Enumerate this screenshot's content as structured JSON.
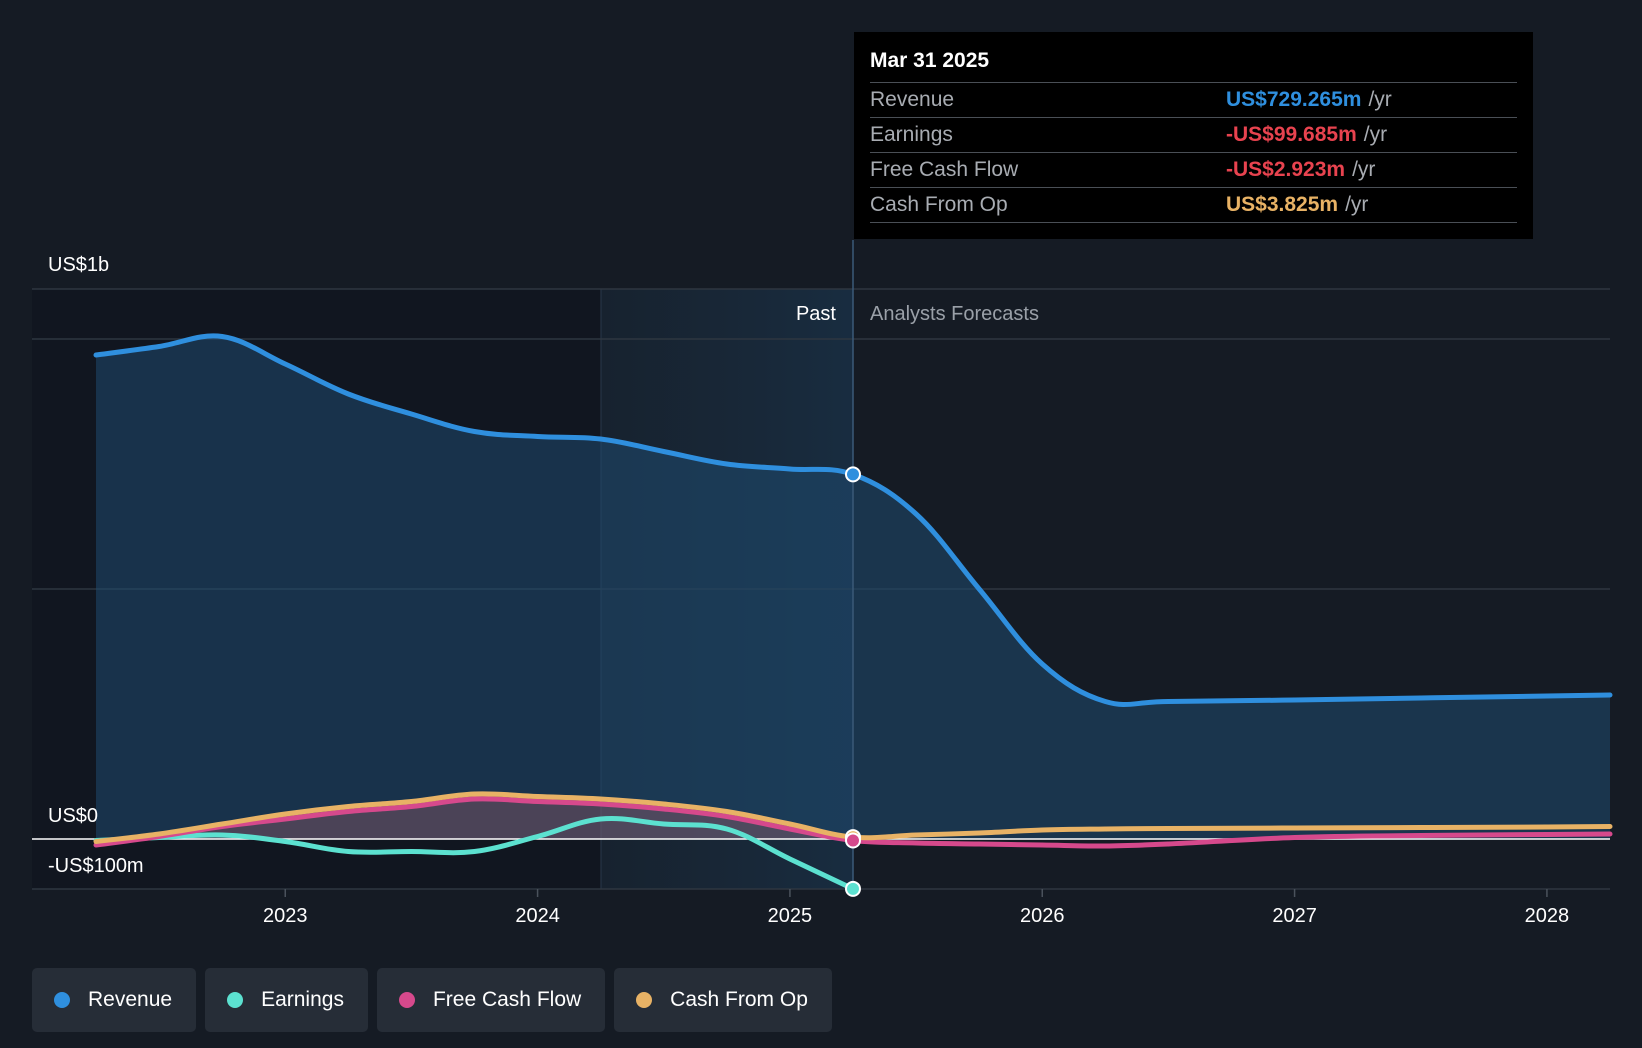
{
  "chart_data": {
    "type": "area",
    "y_axis": {
      "top_label": "US$1b",
      "zero_label": "US$0",
      "bottom_label": "-US$100m",
      "ylim": [
        -100,
        1100
      ]
    },
    "x_axis": {
      "ticks": [
        "2023",
        "2024",
        "2025",
        "2026",
        "2027",
        "2028"
      ],
      "xlim": [
        2022.25,
        2028.25
      ]
    },
    "past_label": "Past",
    "forecast_label": "Analysts Forecasts",
    "divider_x": 2025.25,
    "series": [
      {
        "name": "Revenue",
        "color": "#2f8fde",
        "points": [
          [
            2022.25,
            968
          ],
          [
            2022.5,
            985
          ],
          [
            2022.75,
            1005
          ],
          [
            2023.0,
            950
          ],
          [
            2023.25,
            890
          ],
          [
            2023.5,
            850
          ],
          [
            2023.75,
            815
          ],
          [
            2024.0,
            805
          ],
          [
            2024.25,
            800
          ],
          [
            2024.5,
            775
          ],
          [
            2024.75,
            750
          ],
          [
            2025.0,
            740
          ],
          [
            2025.25,
            729.265
          ],
          [
            2025.5,
            650
          ],
          [
            2025.75,
            500
          ],
          [
            2026.0,
            350
          ],
          [
            2026.25,
            275
          ],
          [
            2026.5,
            275
          ],
          [
            2027.0,
            278
          ],
          [
            2027.5,
            282
          ],
          [
            2028.0,
            286
          ],
          [
            2028.25,
            288
          ]
        ]
      },
      {
        "name": "Earnings",
        "color": "#5ce1d0",
        "points": [
          [
            2022.25,
            -3
          ],
          [
            2022.5,
            3
          ],
          [
            2022.75,
            8
          ],
          [
            2023.0,
            -5
          ],
          [
            2023.25,
            -25
          ],
          [
            2023.5,
            -25
          ],
          [
            2023.75,
            -25
          ],
          [
            2024.0,
            5
          ],
          [
            2024.25,
            40
          ],
          [
            2024.5,
            30
          ],
          [
            2024.75,
            20
          ],
          [
            2025.0,
            -40
          ],
          [
            2025.25,
            -99.685
          ]
        ]
      },
      {
        "name": "Free Cash Flow",
        "color": "#d6498c",
        "points": [
          [
            2022.25,
            -12
          ],
          [
            2022.5,
            5
          ],
          [
            2022.75,
            25
          ],
          [
            2023.0,
            40
          ],
          [
            2023.25,
            55
          ],
          [
            2023.5,
            65
          ],
          [
            2023.75,
            80
          ],
          [
            2024.0,
            75
          ],
          [
            2024.25,
            70
          ],
          [
            2024.5,
            60
          ],
          [
            2024.75,
            45
          ],
          [
            2025.0,
            20
          ],
          [
            2025.25,
            -2.923
          ],
          [
            2025.5,
            -8
          ],
          [
            2025.75,
            -10
          ],
          [
            2026.0,
            -12
          ],
          [
            2026.25,
            -14
          ],
          [
            2026.5,
            -10
          ],
          [
            2027.0,
            3
          ],
          [
            2027.5,
            7
          ],
          [
            2028.0,
            9
          ],
          [
            2028.25,
            10
          ]
        ]
      },
      {
        "name": "Cash From Op",
        "color": "#e8b265",
        "points": [
          [
            2022.25,
            -5
          ],
          [
            2022.5,
            10
          ],
          [
            2022.75,
            30
          ],
          [
            2023.0,
            50
          ],
          [
            2023.25,
            65
          ],
          [
            2023.5,
            75
          ],
          [
            2023.75,
            90
          ],
          [
            2024.0,
            85
          ],
          [
            2024.25,
            80
          ],
          [
            2024.5,
            70
          ],
          [
            2024.75,
            55
          ],
          [
            2025.0,
            30
          ],
          [
            2025.25,
            3.825
          ],
          [
            2025.5,
            8
          ],
          [
            2025.75,
            12
          ],
          [
            2026.0,
            18
          ],
          [
            2026.25,
            20
          ],
          [
            2026.5,
            21
          ],
          [
            2027.0,
            22
          ],
          [
            2027.5,
            23
          ],
          [
            2028.0,
            24
          ],
          [
            2028.25,
            25
          ]
        ]
      }
    ]
  },
  "tooltip": {
    "date": "Mar 31 2025",
    "rows": [
      {
        "name": "Revenue",
        "value": "US$729.265m",
        "unit": "/yr",
        "color": "#2f8fde"
      },
      {
        "name": "Earnings",
        "value": "-US$99.685m",
        "unit": "/yr",
        "color": "#e8434f"
      },
      {
        "name": "Free Cash Flow",
        "value": "-US$2.923m",
        "unit": "/yr",
        "color": "#e8434f"
      },
      {
        "name": "Cash From Op",
        "value": "US$3.825m",
        "unit": "/yr",
        "color": "#e8b265"
      }
    ]
  },
  "legend": [
    {
      "label": "Revenue",
      "color": "#2f8fde"
    },
    {
      "label": "Earnings",
      "color": "#5ce1d0"
    },
    {
      "label": "Free Cash Flow",
      "color": "#d6498c"
    },
    {
      "label": "Cash From Op",
      "color": "#e8b265"
    }
  ]
}
